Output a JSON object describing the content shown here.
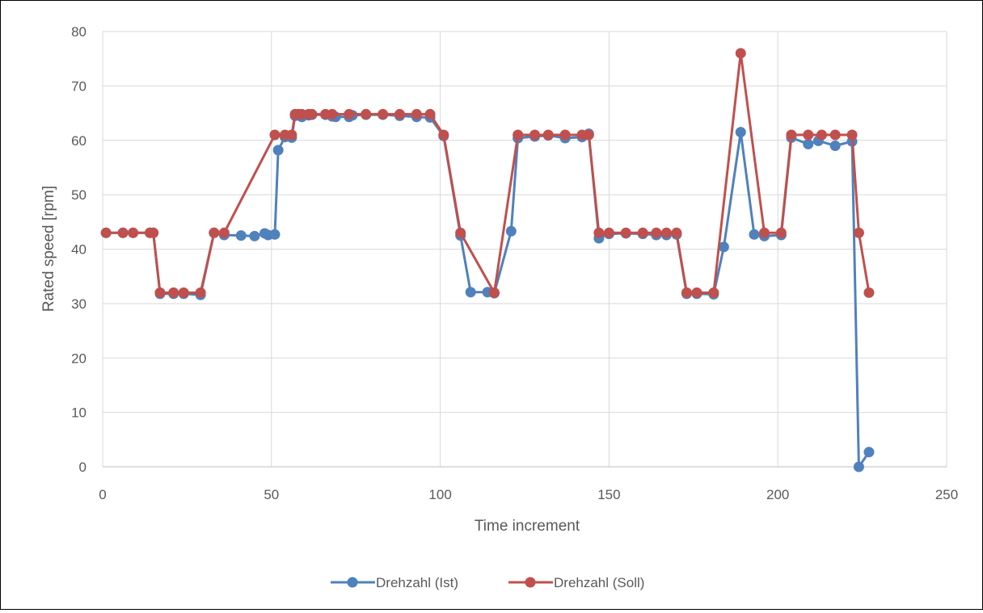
{
  "chart_data": {
    "type": "line",
    "title": "",
    "xlabel": "Time increment",
    "ylabel": "Rated speed [rpm]",
    "xlim": [
      0,
      250
    ],
    "ylim": [
      0,
      80
    ],
    "xticks": [
      0,
      50,
      100,
      150,
      200,
      250
    ],
    "yticks": [
      0,
      10,
      20,
      30,
      40,
      50,
      60,
      70,
      80
    ],
    "xtick_labels": [
      "0",
      "50",
      "100",
      "150",
      "200",
      "250"
    ],
    "ytick_labels": [
      "0",
      "10",
      "20",
      "30",
      "40",
      "50",
      "60",
      "70",
      "80"
    ],
    "grid": true,
    "legend": "bottom",
    "series": [
      {
        "name": "Drehzahl (Ist)",
        "color": "#4F81BD",
        "x": [
          1,
          6,
          9,
          14,
          15,
          17,
          21,
          24,
          29,
          33,
          36,
          41,
          45,
          48,
          49,
          51,
          52,
          54,
          56,
          57,
          58,
          59,
          61,
          62,
          66,
          68,
          69,
          73,
          74,
          78,
          83,
          88,
          93,
          97,
          101,
          106,
          109,
          114,
          116,
          121,
          123,
          128,
          132,
          137,
          142,
          144,
          147,
          150,
          155,
          160,
          164,
          167,
          170,
          173,
          176,
          181,
          184,
          189,
          193,
          196,
          201,
          204,
          209,
          212,
          217,
          222,
          224,
          227
        ],
        "y": [
          43,
          43,
          43,
          43,
          43,
          31.8,
          31.8,
          31.8,
          31.6,
          43,
          42.6,
          42.5,
          42.4,
          42.9,
          42.6,
          42.7,
          58.2,
          60.6,
          60.5,
          64.5,
          64.6,
          64.3,
          64.6,
          64.7,
          64.7,
          64.4,
          64.3,
          64.3,
          64.6,
          64.7,
          64.7,
          64.5,
          64.3,
          64.2,
          60.8,
          42.5,
          32.1,
          32.1,
          31.9,
          43.3,
          60.4,
          60.7,
          60.9,
          60.4,
          60.6,
          61.2,
          42,
          42.8,
          42.9,
          42.8,
          42.6,
          42.6,
          42.7,
          31.8,
          31.8,
          31.7,
          40.4,
          61.5,
          42.7,
          42.4,
          42.6,
          60.5,
          59.3,
          59.9,
          59,
          59.8,
          0,
          2.7
        ]
      },
      {
        "name": "Drehzahl (Soll)",
        "color": "#C0504D",
        "x": [
          1,
          6,
          9,
          14,
          15,
          17,
          21,
          24,
          29,
          33,
          36,
          51,
          54,
          56,
          57,
          58,
          59,
          61,
          62,
          66,
          68,
          73,
          78,
          83,
          88,
          93,
          97,
          101,
          106,
          116,
          123,
          128,
          132,
          137,
          142,
          144,
          147,
          150,
          155,
          160,
          164,
          167,
          170,
          173,
          176,
          181,
          189,
          196,
          201,
          204,
          209,
          213,
          217,
          222,
          224,
          227
        ],
        "y": [
          43,
          43,
          43,
          43,
          43,
          32,
          32,
          32,
          32,
          43,
          43,
          61,
          61,
          61,
          64.8,
          64.8,
          64.8,
          64.8,
          64.8,
          64.8,
          64.8,
          64.8,
          64.8,
          64.8,
          64.8,
          64.8,
          64.8,
          61,
          43,
          32,
          61,
          61,
          61,
          61,
          61,
          61,
          43,
          43,
          43,
          43,
          43,
          43,
          43,
          32,
          32,
          32,
          76,
          43,
          43,
          61,
          61,
          61,
          61,
          61,
          43,
          32
        ]
      }
    ]
  }
}
